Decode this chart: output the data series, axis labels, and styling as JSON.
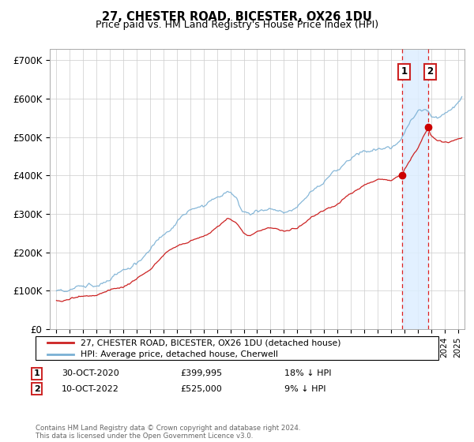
{
  "title": "27, CHESTER ROAD, BICESTER, OX26 1DU",
  "subtitle": "Price paid vs. HM Land Registry's House Price Index (HPI)",
  "ylabel_ticks": [
    "£0",
    "£100K",
    "£200K",
    "£300K",
    "£400K",
    "£500K",
    "£600K",
    "£700K"
  ],
  "ytick_values": [
    0,
    100000,
    200000,
    300000,
    400000,
    500000,
    600000,
    700000
  ],
  "ylim": [
    0,
    730000
  ],
  "xlim_start": 1994.5,
  "xlim_end": 2025.5,
  "hpi_color": "#7ab0d4",
  "price_color": "#cc2222",
  "annotation_color": "#cc0000",
  "vline_color": "#dd2222",
  "shade_color": "#ddeeff",
  "legend_label_price": "27, CHESTER ROAD, BICESTER, OX26 1DU (detached house)",
  "legend_label_hpi": "HPI: Average price, detached house, Cherwell",
  "transaction1_date": "30-OCT-2020",
  "transaction1_price": "£399,995",
  "transaction1_hpi": "18% ↓ HPI",
  "transaction2_date": "10-OCT-2022",
  "transaction2_price": "£525,000",
  "transaction2_hpi": "9% ↓ HPI",
  "footer": "Contains HM Land Registry data © Crown copyright and database right 2024.\nThis data is licensed under the Open Government Licence v3.0.",
  "transaction1_x": 2020.83,
  "transaction1_y": 399995,
  "transaction2_x": 2022.78,
  "transaction2_y": 525000,
  "bg_color": "#f8f8f8"
}
